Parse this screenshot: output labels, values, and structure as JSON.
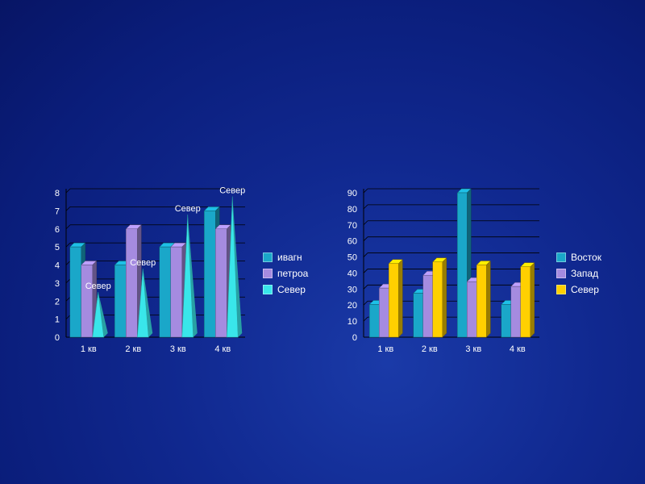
{
  "chart_data": [
    {
      "type": "bar",
      "categories": [
        "1 кв",
        "2 кв",
        "3 кв",
        "4 кв"
      ],
      "ylim": [
        0,
        8
      ],
      "yticks": [
        0,
        1,
        2,
        3,
        4,
        5,
        6,
        7,
        8
      ],
      "series": [
        {
          "name": "ивагн",
          "values": [
            5,
            4,
            5,
            7
          ],
          "color": "#1aa7c9",
          "shape": "bar"
        },
        {
          "name": "петроа",
          "values": [
            4,
            6,
            5,
            6
          ],
          "color": "#a58be0",
          "shape": "bar"
        },
        {
          "name": "Север",
          "values": [
            2.5,
            3.8,
            6.8,
            7.8
          ],
          "color": "#39e6ea",
          "shape": "cone",
          "data_label": "Север"
        }
      ],
      "legend": "right",
      "grid": true
    },
    {
      "type": "bar",
      "categories": [
        "1 кв",
        "2 кв",
        "3 кв",
        "4 кв"
      ],
      "ylim": [
        0,
        90
      ],
      "yticks": [
        0,
        10,
        20,
        30,
        40,
        50,
        60,
        70,
        80,
        90
      ],
      "series": [
        {
          "name": "Восток",
          "values": [
            20.4,
            27.4,
            90,
            20.4
          ],
          "color": "#1aa7c9",
          "shape": "bar"
        },
        {
          "name": "Запад",
          "values": [
            30.6,
            38.6,
            34.6,
            31.6
          ],
          "color": "#a58be0",
          "shape": "bar"
        },
        {
          "name": "Север",
          "values": [
            45.9,
            46.9,
            45,
            43.9
          ],
          "color": "#ffd000",
          "shape": "bar"
        }
      ],
      "legend": "right",
      "grid": true
    }
  ]
}
